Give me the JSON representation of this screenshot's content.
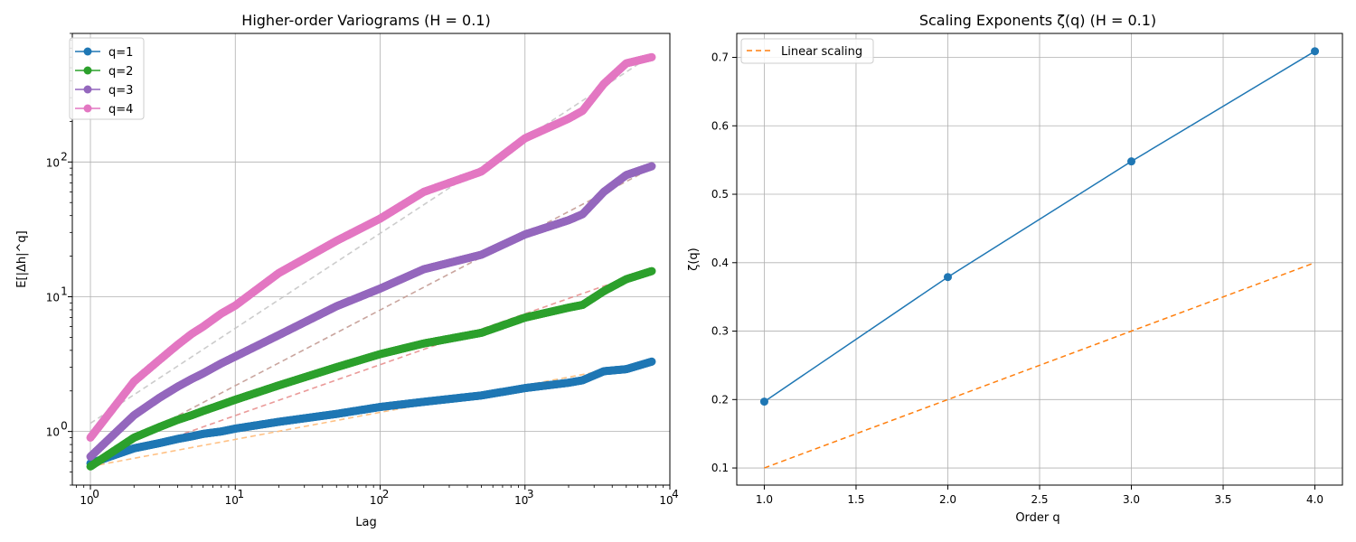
{
  "chart_data": [
    {
      "type": "line",
      "title": "Higher-order Variograms (H = 0.1)",
      "xlabel": "Lag",
      "ylabel": "E[|Δh|^q]",
      "xscale": "log",
      "yscale": "log",
      "xlim": [
        0.75,
        10000
      ],
      "ylim": [
        0.4,
        900
      ],
      "x_ticks": [
        "10^0",
        "10^1",
        "10^2",
        "10^3",
        "10^4"
      ],
      "y_ticks": [
        "10^0",
        "10^1",
        "10^2"
      ],
      "grid": true,
      "legend_position": "upper-left",
      "series": [
        {
          "name": "q=1",
          "color": "#1f77b4",
          "x": [
            1,
            2,
            3,
            4,
            5,
            6,
            8,
            10,
            20,
            50,
            100,
            200,
            500,
            1000,
            2000,
            2500,
            3500,
            5000,
            7500
          ],
          "y": [
            0.58,
            0.75,
            0.82,
            0.88,
            0.92,
            0.96,
            1.0,
            1.05,
            1.18,
            1.35,
            1.52,
            1.66,
            1.85,
            2.1,
            2.3,
            2.4,
            2.8,
            2.9,
            3.3
          ]
        },
        {
          "name": "q=2",
          "color": "#2ca02c",
          "x": [
            1,
            2,
            3,
            4,
            5,
            6,
            8,
            10,
            20,
            50,
            100,
            200,
            500,
            1000,
            2000,
            2500,
            3500,
            5000,
            7500
          ],
          "y": [
            0.55,
            0.9,
            1.08,
            1.22,
            1.32,
            1.42,
            1.58,
            1.72,
            2.2,
            3.0,
            3.75,
            4.5,
            5.4,
            7.0,
            8.3,
            8.7,
            11.0,
            13.5,
            15.5
          ]
        },
        {
          "name": "q=3",
          "color": "#9467bd",
          "x": [
            1,
            2,
            3,
            4,
            5,
            6,
            8,
            10,
            20,
            50,
            100,
            200,
            500,
            1000,
            2000,
            2500,
            3500,
            5000,
            7500
          ],
          "y": [
            0.65,
            1.32,
            1.78,
            2.15,
            2.45,
            2.7,
            3.2,
            3.6,
            5.2,
            8.5,
            11.5,
            16.0,
            20.5,
            29.0,
            37.0,
            41.0,
            60.0,
            80.0,
            93.0
          ]
        },
        {
          "name": "q=4",
          "color": "#e377c2",
          "x": [
            1,
            2,
            3,
            4,
            5,
            6,
            8,
            10,
            20,
            50,
            100,
            200,
            500,
            1000,
            2000,
            2500,
            3500,
            5000,
            7500
          ],
          "y": [
            0.9,
            2.35,
            3.4,
            4.4,
            5.3,
            6.0,
            7.5,
            8.6,
            15.0,
            26.0,
            38.0,
            60.0,
            85.0,
            150.0,
            210.0,
            240.0,
            380.0,
            540.0,
            600.0
          ]
        }
      ],
      "fit_lines": [
        {
          "q": 1,
          "color": "#ffbb78",
          "x": [
            1,
            7500
          ],
          "y": [
            0.55,
            3.3
          ]
        },
        {
          "q": 2,
          "color": "#e8908e",
          "x": [
            1,
            7500
          ],
          "y": [
            0.55,
            16.0
          ]
        },
        {
          "q": 3,
          "color": "#c49c94",
          "x": [
            1,
            7500
          ],
          "y": [
            0.6,
            90.0
          ]
        },
        {
          "q": 4,
          "color": "#c7c7c7",
          "x": [
            1,
            7500
          ],
          "y": [
            1.15,
            620.0
          ]
        }
      ]
    },
    {
      "type": "line",
      "title": "Scaling Exponents ζ(q) (H = 0.1)",
      "xlabel": "Order q",
      "ylabel": "ζ(q)",
      "xlim": [
        0.85,
        4.15
      ],
      "ylim": [
        0.075,
        0.735
      ],
      "x_ticks": [
        "1.0",
        "1.5",
        "2.0",
        "2.5",
        "3.0",
        "3.5",
        "4.0"
      ],
      "y_ticks": [
        "0.1",
        "0.2",
        "0.3",
        "0.4",
        "0.5",
        "0.6",
        "0.7"
      ],
      "grid": true,
      "legend_position": "upper-left",
      "series": [
        {
          "name": "",
          "color": "#1f77b4",
          "x": [
            1,
            2,
            3,
            4
          ],
          "y": [
            0.197,
            0.379,
            0.548,
            0.709
          ]
        },
        {
          "name": "Linear scaling",
          "color": "#ff7f0e",
          "dashed": true,
          "x": [
            1,
            4
          ],
          "y": [
            0.1,
            0.4
          ]
        }
      ]
    }
  ]
}
